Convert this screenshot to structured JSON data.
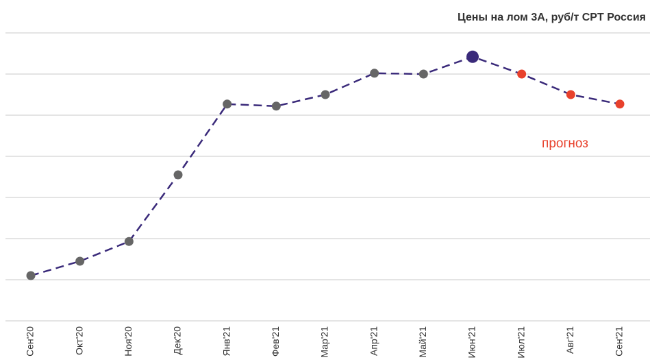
{
  "chart_data": {
    "type": "line",
    "title": "Цены на лом 3А, руб/т CPT Россия",
    "annotation": "прогноз",
    "categories": [
      "Сен'20",
      "Окт'20",
      "Ноя'20",
      "Дек'20",
      "Янв'21",
      "Фев'21",
      "Мар'21",
      "Апр'21",
      "Май'21",
      "Июн'21",
      "Июл'21",
      "Авг'21",
      "Сен'21"
    ],
    "series": [
      {
        "color": "#3a2a7a",
        "values": [
          1.1,
          1.45,
          1.93,
          3.55,
          5.27,
          5.22,
          5.5,
          6.02,
          6.0,
          6.42,
          6.0,
          5.5,
          5.27
        ],
        "point_colors": [
          "#666666",
          "#666666",
          "#666666",
          "#666666",
          "#666666",
          "#666666",
          "#666666",
          "#666666",
          "#666666",
          "#3a2a7a",
          "#e8412c",
          "#e8412c",
          "#e8412c"
        ]
      }
    ],
    "ylim": [
      0,
      7
    ],
    "yticks": [
      0,
      1,
      2,
      3,
      4,
      5,
      6,
      7
    ],
    "grid": true
  }
}
